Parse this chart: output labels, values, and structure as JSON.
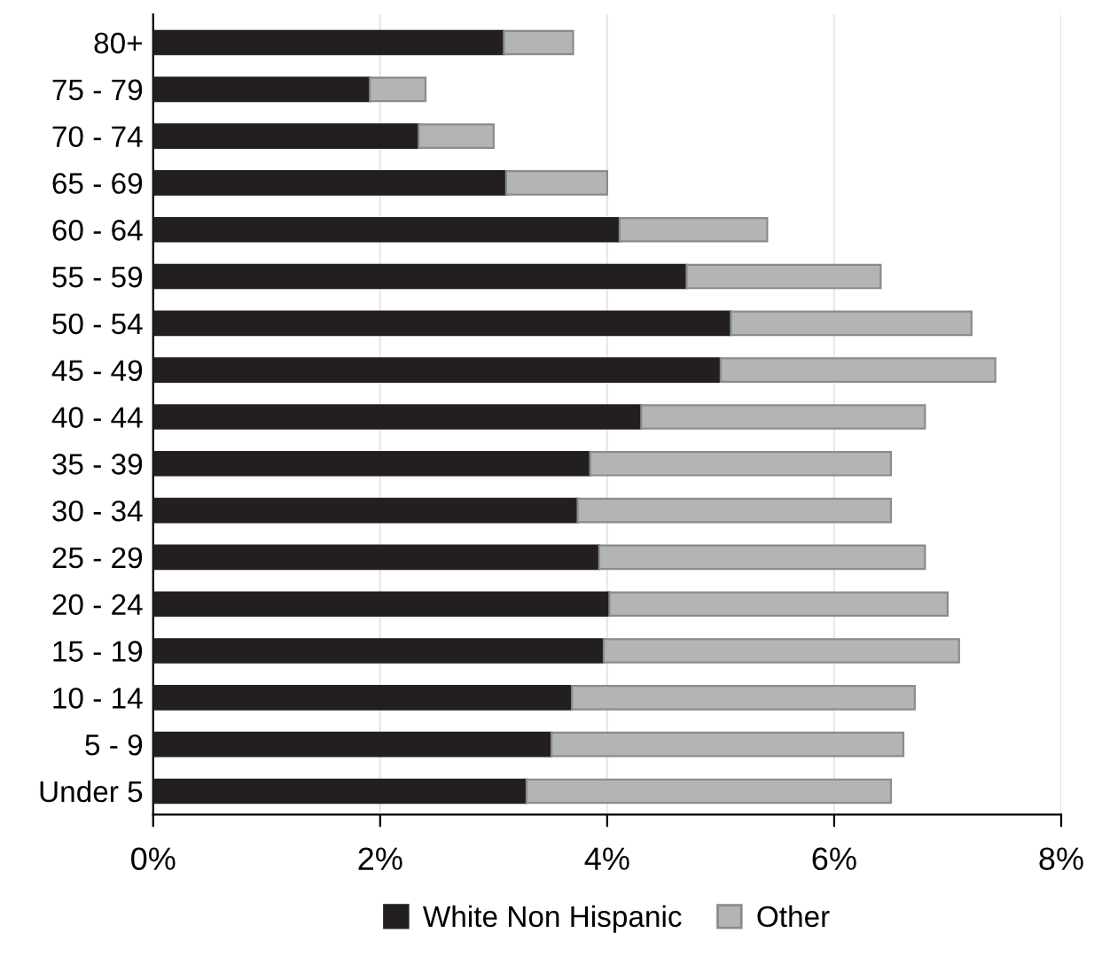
{
  "chart_data": {
    "type": "bar",
    "orientation": "horizontal",
    "stacked": true,
    "categories": [
      "80+",
      "75 - 79",
      "70 - 74",
      "65 - 69",
      "60 - 64",
      "55 - 59",
      "50 - 54",
      "45 - 49",
      "40 - 44",
      "35 - 39",
      "30 - 34",
      "25 - 29",
      "20 - 24",
      "15 - 19",
      "10 - 14",
      "5 - 9",
      "Under 5"
    ],
    "series": [
      {
        "name": "White Non Hispanic",
        "color": "#231f20",
        "values": [
          3.09,
          1.91,
          2.34,
          3.11,
          4.11,
          4.7,
          5.09,
          5.0,
          4.3,
          3.85,
          3.74,
          3.93,
          4.02,
          3.97,
          3.69,
          3.51,
          3.29
        ]
      },
      {
        "name": "Other",
        "color": "#b3b4b6",
        "values": [
          0.61,
          0.49,
          0.66,
          0.89,
          1.3,
          1.71,
          2.12,
          2.42,
          2.5,
          2.65,
          2.76,
          2.87,
          2.98,
          3.13,
          3.02,
          3.1,
          3.21
        ]
      }
    ],
    "xlim": [
      0,
      8
    ],
    "xticks": [
      {
        "value": 0,
        "label": "0%"
      },
      {
        "value": 2,
        "label": "2%"
      },
      {
        "value": 4,
        "label": "4%"
      },
      {
        "value": 6,
        "label": "6%"
      },
      {
        "value": 8,
        "label": "8%"
      }
    ],
    "grid": "x",
    "legend": "bottom"
  }
}
